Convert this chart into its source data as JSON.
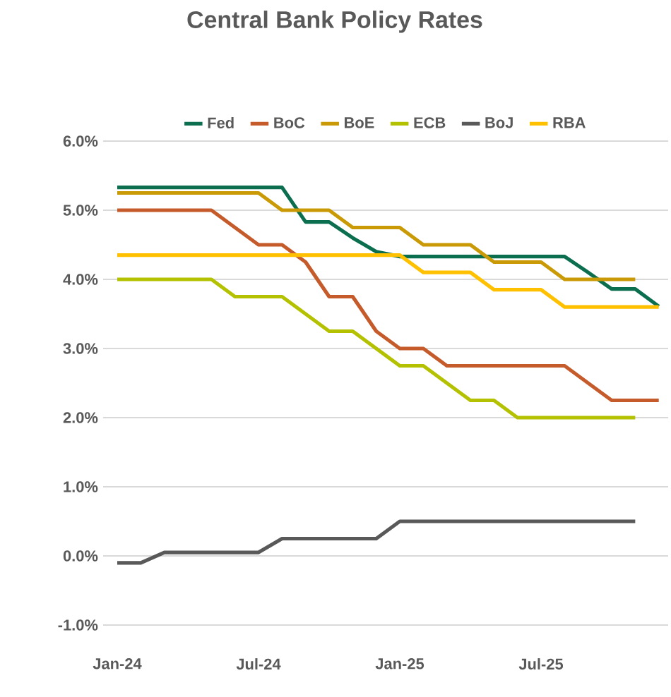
{
  "chart_data": {
    "type": "line",
    "title": "Central Bank Policy Rates",
    "categories": [
      "Jan-24",
      null,
      null,
      null,
      null,
      null,
      "Jul-24",
      null,
      null,
      null,
      null,
      null,
      "Jan-25",
      null,
      null,
      null,
      null,
      null,
      "Jul-25",
      null,
      null,
      null,
      null,
      null
    ],
    "series": [
      {
        "name": "Fed",
        "color": "#0b6e4f",
        "values": [
          5.33,
          5.33,
          5.33,
          5.33,
          5.33,
          5.33,
          5.33,
          5.33,
          4.83,
          4.83,
          4.6,
          4.4,
          4.33,
          4.33,
          4.33,
          4.33,
          4.33,
          4.33,
          4.33,
          4.33,
          4.1,
          3.86,
          3.86,
          3.61
        ]
      },
      {
        "name": "BoC",
        "color": "#c55a2a",
        "values": [
          5.0,
          5.0,
          5.0,
          5.0,
          5.0,
          4.75,
          4.5,
          4.5,
          4.25,
          3.75,
          3.75,
          3.25,
          3.0,
          3.0,
          2.75,
          2.75,
          2.75,
          2.75,
          2.75,
          2.75,
          2.5,
          2.25,
          2.25,
          2.25
        ]
      },
      {
        "name": "BoE",
        "color": "#c99a06",
        "values": [
          5.25,
          5.25,
          5.25,
          5.25,
          5.25,
          5.25,
          5.25,
          5.0,
          5.0,
          5.0,
          4.75,
          4.75,
          4.75,
          4.5,
          4.5,
          4.5,
          4.25,
          4.25,
          4.25,
          4.0,
          4.0,
          4.0,
          4.0,
          null
        ]
      },
      {
        "name": "ECB",
        "color": "#b3c100",
        "values": [
          4.0,
          4.0,
          4.0,
          4.0,
          4.0,
          3.75,
          3.75,
          3.75,
          3.5,
          3.25,
          3.25,
          3.0,
          2.75,
          2.75,
          2.5,
          2.25,
          2.25,
          2.0,
          2.0,
          2.0,
          2.0,
          2.0,
          2.0,
          null
        ]
      },
      {
        "name": "BoJ",
        "color": "#595959",
        "values": [
          -0.1,
          -0.1,
          0.05,
          0.05,
          0.05,
          0.05,
          0.05,
          0.25,
          0.25,
          0.25,
          0.25,
          0.25,
          0.5,
          0.5,
          0.5,
          0.5,
          0.5,
          0.5,
          0.5,
          0.5,
          0.5,
          0.5,
          0.5,
          null
        ]
      },
      {
        "name": "RBA",
        "color": "#ffc000",
        "values": [
          4.35,
          4.35,
          4.35,
          4.35,
          4.35,
          4.35,
          4.35,
          4.35,
          4.35,
          4.35,
          4.35,
          4.35,
          4.35,
          4.1,
          4.1,
          4.1,
          3.85,
          3.85,
          3.85,
          3.6,
          3.6,
          3.6,
          3.6,
          3.6
        ]
      }
    ],
    "ylim": [
      -1,
      6
    ],
    "yticks": [
      {
        "value": -1,
        "label": "-1.0%"
      },
      {
        "value": 0,
        "label": "0.0%"
      },
      {
        "value": 1,
        "label": "1.0%"
      },
      {
        "value": 2,
        "label": "2.0%"
      },
      {
        "value": 3,
        "label": "3.0%"
      },
      {
        "value": 4,
        "label": "4.0%"
      },
      {
        "value": 5,
        "label": "5.0%"
      },
      {
        "value": 6,
        "label": "6.0%"
      }
    ],
    "grid": "y",
    "legend": "top"
  }
}
